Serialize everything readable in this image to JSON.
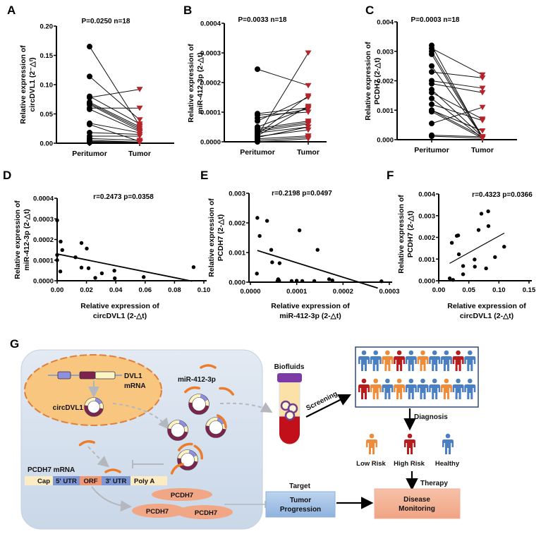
{
  "panel_labels": {
    "A": "A",
    "B": "B",
    "C": "C",
    "D": "D",
    "E": "E",
    "F": "F",
    "G": "G"
  },
  "colors": {
    "peritumor": "#000000",
    "tumor": "#b3242b",
    "blue": "#4a7fc1",
    "orange": "#ef8c3a",
    "red": "#b81c1c"
  },
  "chart_data": [
    {
      "id": "A",
      "type": "paired",
      "title": "P=0.0250  n=18",
      "categories": [
        "Peritumor",
        "Tumor"
      ],
      "ylabel": [
        "Relative expression of",
        "circDVL1 (2⁻△ᵗ)"
      ],
      "ylim": [
        0,
        0.2
      ],
      "yticks": [
        "0.00",
        "0.05",
        "0.10",
        "0.15",
        "0.20"
      ],
      "pairs": [
        [
          0.165,
          0.03
        ],
        [
          0.114,
          0.04
        ],
        [
          0.08,
          0.033
        ],
        [
          0.078,
          0.092
        ],
        [
          0.07,
          0.028
        ],
        [
          0.068,
          0.025
        ],
        [
          0.066,
          0.022
        ],
        [
          0.06,
          0.06
        ],
        [
          0.058,
          0.02
        ],
        [
          0.034,
          0.018
        ],
        [
          0.032,
          0.003
        ],
        [
          0.018,
          0.015
        ],
        [
          0.012,
          0.012
        ],
        [
          0.008,
          0.005
        ],
        [
          0.005,
          0.002
        ],
        [
          0.003,
          0.002
        ],
        [
          0.002,
          0.001
        ],
        [
          0.001,
          0.001
        ]
      ]
    },
    {
      "id": "B",
      "type": "paired",
      "title": "P=0.0033  n=18",
      "categories": [
        "Peritumor",
        "Tumor"
      ],
      "ylabel": [
        "Relative expression of",
        "miR-412-3p (2-△t)"
      ],
      "ylim": [
        0,
        0.0004
      ],
      "yticks": [
        "0.0000",
        "0.0001",
        "0.0002",
        "0.0003",
        "0.0004"
      ],
      "pairs": [
        [
          0.000245,
          0.00019
        ],
        [
          9.5e-05,
          0.000115
        ],
        [
          9e-05,
          0.0001
        ],
        [
          8e-05,
          0.00011
        ],
        [
          7e-05,
          0.00015
        ],
        [
          5e-05,
          0.000115
        ],
        [
          4.5e-05,
          7e-05
        ],
        [
          4e-05,
          6.5e-05
        ],
        [
          3.5e-05,
          6e-05
        ],
        [
          3e-05,
          5e-05
        ],
        [
          2.5e-05,
          0.000155
        ],
        [
          2e-05,
          0.0003
        ],
        [
          2e-05,
          0.00012
        ],
        [
          1.8e-05,
          4e-05
        ],
        [
          1.5e-05,
          5e-05
        ],
        [
          1e-05,
          2e-05
        ],
        [
          5e-06,
          1.5e-05
        ],
        [
          0.0,
          1e-05
        ]
      ]
    },
    {
      "id": "C",
      "type": "paired",
      "title": "P=0.0003  n=18",
      "categories": [
        "Peritumor",
        "Tumor"
      ],
      "ylabel": [
        "Relative  expression of",
        "PCDH7 (2-△t)"
      ],
      "ylim": [
        0,
        0.004
      ],
      "yticks": [
        "0.000",
        "0.001",
        "0.002",
        "0.003",
        "0.004"
      ],
      "pairs": [
        [
          0.0032,
          5e-05
        ],
        [
          0.0031,
          0.0022
        ],
        [
          0.003,
          0.0001
        ],
        [
          0.0029,
          5e-05
        ],
        [
          0.0025,
          0.0001
        ],
        [
          0.0023,
          0.0021
        ],
        [
          0.002,
          0.00175
        ],
        [
          0.0019,
          0.0016
        ],
        [
          0.0017,
          0.0001
        ],
        [
          0.0016,
          0.0007
        ],
        [
          0.0014,
          5e-05
        ],
        [
          0.0012,
          0.00065
        ],
        [
          0.001,
          0.0003
        ],
        [
          0.001,
          0.0001
        ],
        [
          0.00095,
          5e-05
        ],
        [
          0.00055,
          0.0011
        ],
        [
          0.00015,
          0.0001
        ],
        [
          0.00012,
          5e-05
        ]
      ]
    },
    {
      "id": "D",
      "type": "scatter",
      "title": "r=0.2473  p=0.0358",
      "ylabel": [
        "Relative  expression of",
        "miR-412-3p (2-△t)"
      ],
      "xlabel": [
        "Relative  expression of",
        "circDVL1 (2-△t)"
      ],
      "xlim": [
        0,
        0.1
      ],
      "ylim": [
        0,
        0.0004
      ],
      "xticks": [
        "0.00",
        "0.02",
        "0.04",
        "0.06",
        "0.08",
        "0.10"
      ],
      "yticks": [
        "0.0000",
        "0.0001",
        "0.0002",
        "0.0003",
        "0.0004"
      ],
      "points": [
        [
          0,
          0.000293
        ],
        [
          0,
          0.0001
        ],
        [
          0,
          0.000125
        ],
        [
          0.0024,
          0.00019
        ],
        [
          0.0035,
          0.000149
        ],
        [
          0.0022,
          4.5e-05
        ],
        [
          0.0125,
          0.000114
        ],
        [
          0.0166,
          0.000183
        ],
        [
          0.0166,
          6.4e-05
        ],
        [
          0.0202,
          0.000156
        ],
        [
          0.0214,
          6.1e-05
        ],
        [
          0.026,
          1.4e-05
        ],
        [
          0.0305,
          3.6e-05
        ],
        [
          0.039,
          4.9e-05
        ],
        [
          0.0393,
          1.2e-05
        ],
        [
          0.059,
          1.8e-05
        ],
        [
          0.093,
          6.6e-05
        ]
      ],
      "fit": [
        [
          0,
          0.00013
        ],
        [
          0.092,
          -2e-06
        ]
      ]
    },
    {
      "id": "E",
      "type": "scatter",
      "title": "r=0.2198  p=0.0497",
      "ylabel": [
        "Relative  expression of",
        "PCDH7 (2-△t)"
      ],
      "xlabel": [
        "Relative  expression of",
        "miR-412-3p (2-△t)"
      ],
      "xlim": [
        0,
        0.0003
      ],
      "ylim": [
        0,
        0.003
      ],
      "xticks": [
        "0.0000",
        "0.0001",
        "0.0002",
        "0.0003"
      ],
      "yticks": [
        "0.000",
        "0.001",
        "0.002",
        "0.003"
      ],
      "points": [
        [
          1.5e-05,
          0.00217
        ],
        [
          2e-05,
          0.00156
        ],
        [
          3.6e-05,
          0.00207
        ],
        [
          4.5e-05,
          0.00109
        ],
        [
          4.7e-05,
          0.00067
        ],
        [
          6.3e-05,
          0.00064
        ],
        [
          1.4e-05,
          0.00029
        ],
        [
          0.000106,
          0.00175
        ],
        [
          0.000145,
          0.00109
        ],
        [
          6e-05,
          0.0001
        ],
        [
          6.2e-05,
          5e-05
        ],
        [
          5.85e-05,
          4e-05
        ],
        [
          8.9e-05,
          4e-05
        ],
        [
          0.0001,
          5e-05
        ],
        [
          0.000112,
          4e-05
        ],
        [
          0.000138,
          4e-05
        ],
        [
          0.00017,
          0.0001
        ],
        [
          0.000177,
          6e-05
        ],
        [
          0.000283,
          3e-05
        ]
      ],
      "fit": [
        [
          1.5e-05,
          0.00107
        ],
        [
          0.000275,
          -0.0002
        ]
      ]
    },
    {
      "id": "F",
      "type": "scatter",
      "title": "r=0.4323  p=0.0366",
      "ylabel": [
        "Relative  expression of",
        "PCDH7 (2-△t)"
      ],
      "xlabel": [
        "Relative  expression of",
        "circDVL1 (2-△t)"
      ],
      "xlim": [
        0,
        0.15
      ],
      "ylim": [
        0,
        0.004
      ],
      "xticks": [
        "0.00",
        "0.05",
        "0.10",
        "0.15"
      ],
      "yticks": [
        "0.000",
        "0.001",
        "0.002",
        "0.003",
        "0.004"
      ],
      "points": [
        [
          0.0183,
          0.00011
        ],
        [
          0.0238,
          4e-05
        ],
        [
          0.0218,
          0.00175
        ],
        [
          0.03,
          0.00207
        ],
        [
          0.0323,
          0.00209
        ],
        [
          0.0335,
          0.00122
        ],
        [
          0.0405,
          0.00068
        ],
        [
          0.0405,
          0.0003
        ],
        [
          0.0596,
          0.00098
        ],
        [
          0.06,
          0.00065
        ],
        [
          0.0662,
          0.00234
        ],
        [
          0.0709,
          0.00309
        ],
        [
          0.0787,
          0.00057
        ],
        [
          0.0822,
          0.0032
        ],
        [
          0.0826,
          0.00252
        ],
        [
          0.0935,
          0.00109
        ],
        [
          0.1087,
          0.00157
        ]
      ],
      "fit": [
        [
          0.018,
          0.0008
        ],
        [
          0.109,
          0.0022
        ]
      ]
    }
  ],
  "diagram": {
    "dvl1_mrna": [
      "DVL1",
      "mRNA"
    ],
    "circdvl1": "circDVL1",
    "mirna": "miR-412-3p",
    "pcdh7_mrna": "PCDH7 mRNA",
    "mrna_segments": [
      "Cap",
      "5' UTR",
      "ORF",
      "3' UTR",
      "Poly A"
    ],
    "protein": "PCDH7",
    "biofluids": "Biofluids",
    "screening": "Screening",
    "diagnosis": "Diagnosis",
    "population_rows": [
      [
        "blue",
        "blue",
        "orange",
        "red",
        "blue",
        "orange",
        "blue",
        "blue",
        "red",
        "blue"
      ],
      [
        "red",
        "orange",
        "blue",
        "orange",
        "blue",
        "blue",
        "blue",
        "orange",
        "blue",
        "blue"
      ]
    ],
    "risk_groups": [
      {
        "label": "Low Risk",
        "color": "orange"
      },
      {
        "label": "High Risk",
        "color": "red"
      },
      {
        "label": "Healthy",
        "color": "blue"
      }
    ],
    "therapy": "Therapy",
    "target": "Target",
    "tumor_box": [
      "Tumor",
      "Progression"
    ],
    "disease_box": [
      "Disease",
      "Monitoring"
    ]
  }
}
